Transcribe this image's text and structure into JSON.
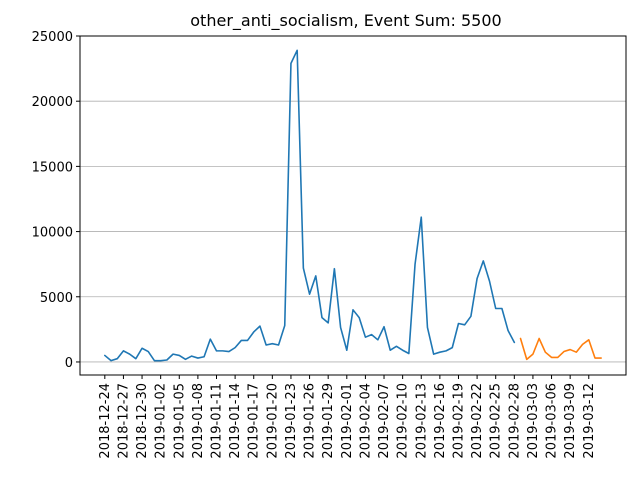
{
  "chart_data": {
    "type": "line",
    "title": "other_anti_socialism, Event Sum: 5500",
    "xlabel": "",
    "ylabel": "",
    "ylim": [
      -1000,
      25000
    ],
    "y_ticks": [
      0,
      5000,
      10000,
      15000,
      20000,
      25000
    ],
    "y_tick_labels": [
      "0",
      "5000",
      "10000",
      "15000",
      "20000",
      "25000"
    ],
    "grid": "horizontal",
    "x_tick_labels": [
      "2018-12-24",
      "2018-12-27",
      "2018-12-30",
      "2019-01-02",
      "2019-01-05",
      "2019-01-08",
      "2019-01-11",
      "2019-01-14",
      "2019-01-17",
      "2019-01-20",
      "2019-01-23",
      "2019-01-26",
      "2019-01-29",
      "2019-02-01",
      "2019-02-04",
      "2019-02-07",
      "2019-02-10",
      "2019-02-13",
      "2019-02-16",
      "2019-02-19",
      "2019-02-22",
      "2019-02-25",
      "2019-02-28",
      "2019-03-03",
      "2019-03-06",
      "2019-03-09",
      "2019-03-12"
    ],
    "series": [
      {
        "color": "#1f77b4",
        "x": [
          "2018-12-24",
          "2018-12-25",
          "2018-12-26",
          "2018-12-27",
          "2018-12-28",
          "2018-12-29",
          "2018-12-30",
          "2018-12-31",
          "2019-01-01",
          "2019-01-02",
          "2019-01-03",
          "2019-01-04",
          "2019-01-05",
          "2019-01-06",
          "2019-01-07",
          "2019-01-08",
          "2019-01-09",
          "2019-01-10",
          "2019-01-11",
          "2019-01-12",
          "2019-01-13",
          "2019-01-14",
          "2019-01-15",
          "2019-01-16",
          "2019-01-17",
          "2019-01-18",
          "2019-01-19",
          "2019-01-20",
          "2019-01-21",
          "2019-01-22",
          "2019-01-23",
          "2019-01-24",
          "2019-01-25",
          "2019-01-26",
          "2019-01-27",
          "2019-01-28",
          "2019-01-29",
          "2019-01-30",
          "2019-01-31",
          "2019-02-01",
          "2019-02-02",
          "2019-02-03",
          "2019-02-04",
          "2019-02-05",
          "2019-02-06",
          "2019-02-07",
          "2019-02-08",
          "2019-02-09",
          "2019-02-10",
          "2019-02-11",
          "2019-02-12",
          "2019-02-13",
          "2019-02-14",
          "2019-02-15",
          "2019-02-16",
          "2019-02-17",
          "2019-02-18",
          "2019-02-19",
          "2019-02-20",
          "2019-02-21",
          "2019-02-22",
          "2019-02-23",
          "2019-02-24",
          "2019-02-25",
          "2019-02-26",
          "2019-02-27",
          "2019-02-28"
        ],
        "values": [
          500,
          100,
          250,
          850,
          600,
          250,
          1050,
          800,
          100,
          100,
          150,
          600,
          500,
          200,
          450,
          300,
          400,
          1750,
          850,
          850,
          800,
          1100,
          1650,
          1650,
          2300,
          2750,
          1300,
          1400,
          1300,
          2800,
          22900,
          23900,
          7200,
          5200,
          6600,
          3400,
          3000,
          7150,
          2650,
          900,
          4000,
          3400,
          1900,
          2100,
          1700,
          2700,
          900,
          1200,
          900,
          650,
          7500,
          11100,
          2650,
          600,
          750,
          850,
          1100,
          2950,
          2850,
          3500,
          6400,
          7750,
          6200,
          4100,
          4100,
          2400,
          1500
        ]
      },
      {
        "color": "#ff7f0e",
        "x": [
          "2019-03-01",
          "2019-03-02",
          "2019-03-03",
          "2019-03-04",
          "2019-03-05",
          "2019-03-06",
          "2019-03-07",
          "2019-03-08",
          "2019-03-09",
          "2019-03-10",
          "2019-03-11",
          "2019-03-12",
          "2019-03-13",
          "2019-03-14"
        ],
        "values": [
          1800,
          200,
          600,
          1800,
          750,
          350,
          350,
          800,
          950,
          750,
          1350,
          1700,
          300,
          300
        ]
      }
    ]
  }
}
